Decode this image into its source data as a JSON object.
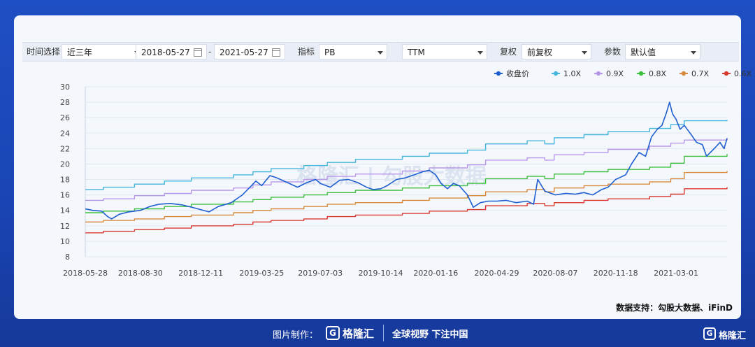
{
  "toolbar": {
    "period_label": "时间选择",
    "period_value": "近三年",
    "start_date": "2018-05-27",
    "dash": "-",
    "end_date": "2021-05-27",
    "indicator_label": "指标",
    "indicator_value": "PB",
    "ttm_value": "TTM",
    "adjust_label": "复权",
    "adjust_value": "前复权",
    "param_label": "参数",
    "param_value": "默认值"
  },
  "source": "数据支持：勾股大数据、iFinD",
  "watermark": "格隆汇 | 勾股大数据",
  "footer": {
    "made_by": "图片制作：",
    "brand": "格隆汇",
    "slogan": "全球视野 下注中国",
    "corner_brand": "格隆汇"
  },
  "colors": {
    "close": "#1f5fcf",
    "x10": "#45b5dc",
    "x09": "#b896ea",
    "x08": "#3fbf3f",
    "x07": "#d88a3c",
    "x06": "#d93a30"
  },
  "chart_data": {
    "type": "line",
    "title": "",
    "xlabel": "",
    "ylabel": "",
    "ylim": [
      8,
      30
    ],
    "y_ticks": [
      8,
      10,
      12,
      14,
      16,
      18,
      20,
      22,
      24,
      26,
      28,
      30
    ],
    "x_range": [
      "2018-05-28",
      "2021-05-27"
    ],
    "x_ticks": [
      "2018-05-28",
      "2018-08-30",
      "2018-12-11",
      "2019-03-25",
      "2019-07-03",
      "2019-10-14",
      "2020-01-16",
      "2020-04-29",
      "2020-08-07",
      "2020-11-18",
      "2021-03-01"
    ],
    "legend_position": "top-right",
    "grid": "horizontal",
    "series": [
      {
        "name": "收盘价",
        "color_key": "close",
        "points": [
          [
            "2018-05-28",
            14.2
          ],
          [
            "2018-06-10",
            14.0
          ],
          [
            "2018-06-25",
            13.9
          ],
          [
            "2018-07-05",
            13.2
          ],
          [
            "2018-07-12",
            12.9
          ],
          [
            "2018-07-25",
            13.5
          ],
          [
            "2018-08-10",
            13.8
          ],
          [
            "2018-08-30",
            14.0
          ],
          [
            "2018-09-15",
            14.5
          ],
          [
            "2018-10-01",
            14.8
          ],
          [
            "2018-10-20",
            14.9
          ],
          [
            "2018-11-10",
            14.7
          ],
          [
            "2018-12-01",
            14.3
          ],
          [
            "2018-12-25",
            13.8
          ],
          [
            "2019-01-10",
            14.5
          ],
          [
            "2019-02-01",
            15.0
          ],
          [
            "2019-02-20",
            16.0
          ],
          [
            "2019-03-05",
            17.0
          ],
          [
            "2019-03-15",
            17.8
          ],
          [
            "2019-03-25",
            17.2
          ],
          [
            "2019-04-08",
            18.5
          ],
          [
            "2019-04-20",
            18.2
          ],
          [
            "2019-05-08",
            17.6
          ],
          [
            "2019-05-25",
            17.0
          ],
          [
            "2019-06-10",
            17.6
          ],
          [
            "2019-06-25",
            18.0
          ],
          [
            "2019-07-03",
            17.5
          ],
          [
            "2019-07-20",
            17.0
          ],
          [
            "2019-08-05",
            17.9
          ],
          [
            "2019-08-20",
            18.0
          ],
          [
            "2019-09-05",
            17.6
          ],
          [
            "2019-09-20",
            17.0
          ],
          [
            "2019-10-01",
            16.7
          ],
          [
            "2019-10-14",
            16.8
          ],
          [
            "2019-10-25",
            17.2
          ],
          [
            "2019-11-10",
            18.0
          ],
          [
            "2019-11-25",
            18.2
          ],
          [
            "2019-12-10",
            18.6
          ],
          [
            "2019-12-25",
            19.0
          ],
          [
            "2020-01-05",
            19.2
          ],
          [
            "2020-01-16",
            18.6
          ],
          [
            "2020-01-25",
            17.5
          ],
          [
            "2020-02-05",
            16.8
          ],
          [
            "2020-02-15",
            17.5
          ],
          [
            "2020-02-25",
            17.2
          ],
          [
            "2020-03-10",
            16.0
          ],
          [
            "2020-03-20",
            14.4
          ],
          [
            "2020-04-01",
            15.0
          ],
          [
            "2020-04-15",
            15.2
          ],
          [
            "2020-04-29",
            15.2
          ],
          [
            "2020-05-15",
            15.3
          ],
          [
            "2020-06-01",
            15.0
          ],
          [
            "2020-06-20",
            15.2
          ],
          [
            "2020-07-01",
            14.8
          ],
          [
            "2020-07-08",
            18.0
          ],
          [
            "2020-07-20",
            16.5
          ],
          [
            "2020-08-07",
            16.0
          ],
          [
            "2020-08-25",
            16.2
          ],
          [
            "2020-09-10",
            16.1
          ],
          [
            "2020-09-25",
            16.3
          ],
          [
            "2020-10-10",
            16.0
          ],
          [
            "2020-10-25",
            16.7
          ],
          [
            "2020-11-05",
            17.0
          ],
          [
            "2020-11-18",
            18.0
          ],
          [
            "2020-12-05",
            18.6
          ],
          [
            "2020-12-15",
            20.0
          ],
          [
            "2020-12-28",
            21.5
          ],
          [
            "2021-01-08",
            21.0
          ],
          [
            "2021-01-18",
            23.5
          ],
          [
            "2021-01-28",
            24.5
          ],
          [
            "2021-02-05",
            25.0
          ],
          [
            "2021-02-12",
            26.5
          ],
          [
            "2021-02-18",
            28.0
          ],
          [
            "2021-02-23",
            26.5
          ],
          [
            "2021-03-01",
            25.8
          ],
          [
            "2021-03-08",
            24.5
          ],
          [
            "2021-03-15",
            25.0
          ],
          [
            "2021-03-25",
            24.0
          ],
          [
            "2021-04-05",
            22.8
          ],
          [
            "2021-04-15",
            22.5
          ],
          [
            "2021-04-22",
            21.0
          ],
          [
            "2021-05-05",
            22.0
          ],
          [
            "2021-05-15",
            22.8
          ],
          [
            "2021-05-22",
            22.0
          ],
          [
            "2021-05-27",
            23.3
          ]
        ]
      },
      {
        "name": "1.0X",
        "color_key": "x10",
        "points": [
          [
            "2018-05-28",
            16.7
          ],
          [
            "2018-06-28",
            17.0
          ],
          [
            "2018-08-20",
            17.4
          ],
          [
            "2018-10-10",
            17.8
          ],
          [
            "2018-11-25",
            18.2
          ],
          [
            "2019-02-05",
            18.6
          ],
          [
            "2019-03-10",
            19.0
          ],
          [
            "2019-04-10",
            19.4
          ],
          [
            "2019-06-05",
            19.8
          ],
          [
            "2019-07-15",
            20.2
          ],
          [
            "2019-09-01",
            20.6
          ],
          [
            "2019-11-20",
            21.0
          ],
          [
            "2020-01-05",
            21.4
          ],
          [
            "2020-03-10",
            21.8
          ],
          [
            "2020-04-10",
            22.6
          ],
          [
            "2020-06-20",
            23.0
          ],
          [
            "2020-07-20",
            22.6
          ],
          [
            "2020-08-05",
            23.4
          ],
          [
            "2020-09-25",
            23.8
          ],
          [
            "2020-11-05",
            24.2
          ],
          [
            "2021-01-15",
            24.6
          ],
          [
            "2021-02-20",
            25.1
          ],
          [
            "2021-03-15",
            25.6
          ],
          [
            "2021-05-27",
            25.7
          ]
        ]
      },
      {
        "name": "0.9X",
        "color_key": "x09",
        "points": [
          [
            "2018-05-28",
            15.3
          ],
          [
            "2018-06-28",
            15.5
          ],
          [
            "2018-08-20",
            15.9
          ],
          [
            "2018-10-10",
            16.2
          ],
          [
            "2018-11-25",
            16.6
          ],
          [
            "2019-02-05",
            16.9
          ],
          [
            "2019-03-10",
            17.3
          ],
          [
            "2019-04-10",
            17.7
          ],
          [
            "2019-06-05",
            18.0
          ],
          [
            "2019-07-15",
            18.4
          ],
          [
            "2019-09-01",
            18.7
          ],
          [
            "2019-11-20",
            19.1
          ],
          [
            "2020-01-05",
            19.5
          ],
          [
            "2020-03-10",
            19.9
          ],
          [
            "2020-04-10",
            20.5
          ],
          [
            "2020-06-20",
            20.8
          ],
          [
            "2020-07-20",
            20.5
          ],
          [
            "2020-08-05",
            21.2
          ],
          [
            "2020-09-25",
            21.5
          ],
          [
            "2020-11-05",
            21.9
          ],
          [
            "2021-01-15",
            22.3
          ],
          [
            "2021-02-20",
            22.7
          ],
          [
            "2021-03-15",
            23.1
          ],
          [
            "2021-05-27",
            23.4
          ]
        ]
      },
      {
        "name": "0.8X",
        "color_key": "x08",
        "points": [
          [
            "2018-05-28",
            13.7
          ],
          [
            "2018-06-28",
            13.9
          ],
          [
            "2018-08-20",
            14.2
          ],
          [
            "2018-10-10",
            14.5
          ],
          [
            "2018-11-25",
            14.8
          ],
          [
            "2019-02-05",
            15.1
          ],
          [
            "2019-03-10",
            15.4
          ],
          [
            "2019-04-10",
            15.7
          ],
          [
            "2019-06-05",
            16.0
          ],
          [
            "2019-07-15",
            16.3
          ],
          [
            "2019-09-01",
            16.6
          ],
          [
            "2019-11-20",
            16.9
          ],
          [
            "2020-01-05",
            17.2
          ],
          [
            "2020-03-10",
            17.5
          ],
          [
            "2020-04-10",
            18.1
          ],
          [
            "2020-06-20",
            18.4
          ],
          [
            "2020-07-20",
            18.1
          ],
          [
            "2020-08-05",
            18.7
          ],
          [
            "2020-09-25",
            19.0
          ],
          [
            "2020-11-05",
            19.3
          ],
          [
            "2021-01-15",
            19.6
          ],
          [
            "2021-02-20",
            20.1
          ],
          [
            "2021-03-15",
            21.0
          ],
          [
            "2021-05-27",
            21.3
          ]
        ]
      },
      {
        "name": "0.7X",
        "color_key": "x07",
        "points": [
          [
            "2018-05-28",
            12.5
          ],
          [
            "2018-06-28",
            12.7
          ],
          [
            "2018-08-20",
            12.9
          ],
          [
            "2018-10-10",
            13.2
          ],
          [
            "2018-11-25",
            13.4
          ],
          [
            "2019-02-05",
            13.7
          ],
          [
            "2019-03-10",
            14.0
          ],
          [
            "2019-04-10",
            14.2
          ],
          [
            "2019-06-05",
            14.5
          ],
          [
            "2019-07-15",
            14.8
          ],
          [
            "2019-09-01",
            15.0
          ],
          [
            "2019-11-20",
            15.3
          ],
          [
            "2020-01-05",
            15.6
          ],
          [
            "2020-03-10",
            15.9
          ],
          [
            "2020-04-10",
            16.4
          ],
          [
            "2020-06-20",
            16.7
          ],
          [
            "2020-07-20",
            16.4
          ],
          [
            "2020-08-05",
            16.9
          ],
          [
            "2020-09-25",
            17.2
          ],
          [
            "2020-11-05",
            17.4
          ],
          [
            "2021-01-15",
            17.7
          ],
          [
            "2021-02-20",
            18.1
          ],
          [
            "2021-03-15",
            18.9
          ],
          [
            "2021-05-27",
            19.1
          ]
        ]
      },
      {
        "name": "0.6X",
        "color_key": "x06",
        "points": [
          [
            "2018-05-28",
            11.1
          ],
          [
            "2018-06-28",
            11.3
          ],
          [
            "2018-08-20",
            11.5
          ],
          [
            "2018-10-10",
            11.7
          ],
          [
            "2018-11-25",
            12.0
          ],
          [
            "2019-02-05",
            12.2
          ],
          [
            "2019-03-10",
            12.5
          ],
          [
            "2019-04-10",
            12.7
          ],
          [
            "2019-06-05",
            12.9
          ],
          [
            "2019-07-15",
            13.2
          ],
          [
            "2019-09-01",
            13.4
          ],
          [
            "2019-11-20",
            13.6
          ],
          [
            "2020-01-05",
            13.9
          ],
          [
            "2020-03-10",
            14.1
          ],
          [
            "2020-04-10",
            14.6
          ],
          [
            "2020-06-20",
            14.9
          ],
          [
            "2020-07-20",
            14.6
          ],
          [
            "2020-08-05",
            15.0
          ],
          [
            "2020-09-25",
            15.3
          ],
          [
            "2020-11-05",
            15.5
          ],
          [
            "2021-01-15",
            15.8
          ],
          [
            "2021-02-20",
            16.1
          ],
          [
            "2021-03-15",
            16.8
          ],
          [
            "2021-05-27",
            17.0
          ]
        ]
      }
    ]
  }
}
